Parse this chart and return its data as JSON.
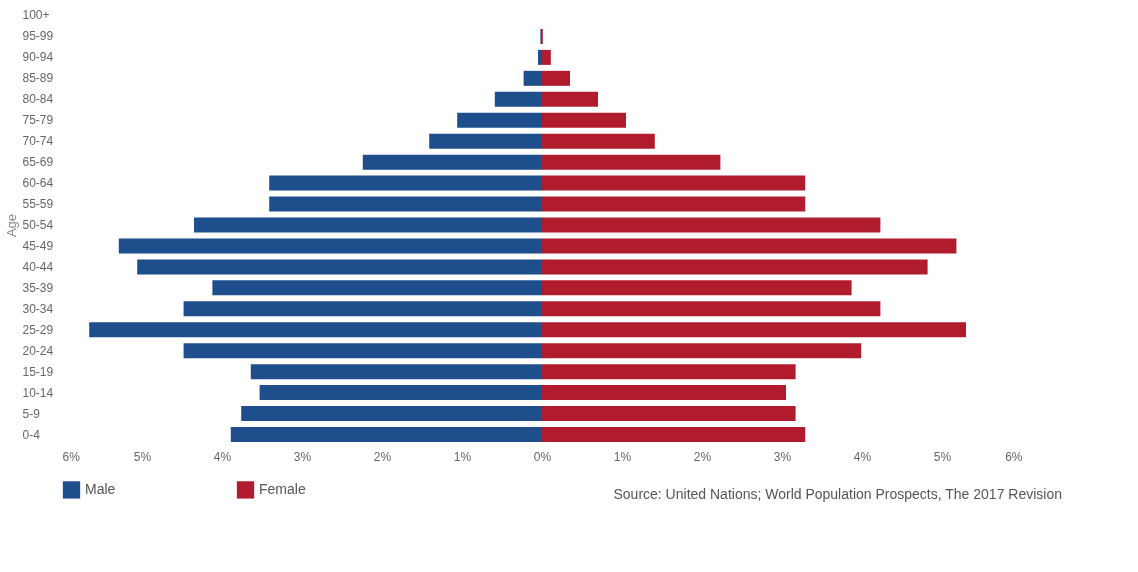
{
  "chart_data": {
    "type": "bar",
    "orientation": "horizontal",
    "ylabel": "Age",
    "categories": [
      "100+",
      "95-99",
      "90-94",
      "85-89",
      "80-84",
      "75-79",
      "70-74",
      "65-69",
      "60-64",
      "55-59",
      "50-54",
      "45-49",
      "40-44",
      "35-39",
      "30-34",
      "25-29",
      "20-24",
      "15-19",
      "10-14",
      "5-9",
      "0-4"
    ],
    "series": [
      {
        "name": "Male",
        "color": "#1f4e8c",
        "values": [
          0,
          -0.02,
          -0.05,
          -0.23,
          -0.59,
          -1.06,
          -1.41,
          -2.24,
          -3.41,
          -3.41,
          -4.35,
          -5.29,
          -5.06,
          -4.12,
          -4.48,
          -5.66,
          -4.48,
          -3.64,
          -3.53,
          -3.76,
          -3.89
        ]
      },
      {
        "name": "Female",
        "color": "#b01c2e",
        "values": [
          0,
          0.01,
          0.11,
          0.35,
          0.7,
          1.05,
          1.41,
          2.23,
          3.29,
          3.29,
          4.23,
          5.18,
          4.82,
          3.87,
          4.23,
          5.3,
          3.99,
          3.17,
          3.05,
          3.17,
          3.29
        ]
      }
    ],
    "xlim": [
      -6,
      6
    ],
    "xticks": [
      {
        "value": -6,
        "label": "6%"
      },
      {
        "value": -5,
        "label": "5%"
      },
      {
        "value": -4,
        "label": "4%"
      },
      {
        "value": -3,
        "label": "3%"
      },
      {
        "value": -2,
        "label": "2%"
      },
      {
        "value": -1,
        "label": "1%"
      },
      {
        "value": 0,
        "label": "0%"
      },
      {
        "value": 1,
        "label": "1%"
      },
      {
        "value": 2,
        "label": "2%"
      },
      {
        "value": 3,
        "label": "3%"
      },
      {
        "value": 4,
        "label": "4%"
      },
      {
        "value": 5,
        "label": "5%"
      },
      {
        "value": 6,
        "label": "6%"
      }
    ],
    "legend": "bottom",
    "grid": false,
    "stacked": true,
    "annotations": [
      "Source: United Nations; World Population Prospects, The 2017 Revision"
    ]
  }
}
